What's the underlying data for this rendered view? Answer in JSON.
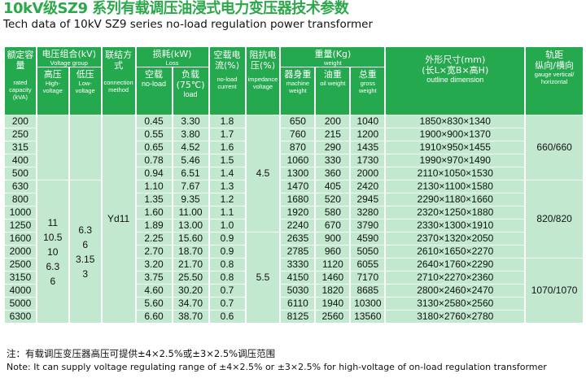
{
  "title_cn": "10kV级SZ9 系列有载调压油浸式电力变压器技术参数",
  "title_en": "Tech data of 10kV SZ9 series no-load regulation power transformer",
  "headers": {
    "capacity_cn": "额定容量",
    "capacity_en": "rated capacity (kVA)",
    "voltage_cn": "电压组合(kV)",
    "voltage_en": "Voltage group",
    "hv_cn": "高压",
    "hv_en": "High-voltage",
    "lv_cn": "低压",
    "lv_en": "Low-voltage",
    "connection_cn": "联结方式",
    "connection_en": "connection method",
    "loss_cn": "损耗(kW)",
    "loss_en": "Loss",
    "noload_cn": "空载",
    "noload_en": "no-load",
    "load_cn": "负载(75℃)",
    "load_en": "load",
    "current_cn": "空载电流(%)",
    "current_en": "no-load current",
    "impedance_cn": "阻抗电压(%)",
    "impedance_en": "impedance voltage",
    "weight_cn": "重量(Kg)",
    "weight_en": "weight",
    "machine_cn": "器身重",
    "machine_en": "machine weight",
    "oil_cn": "油重",
    "oil_en": "oil weight",
    "gross_cn": "总重",
    "gross_en": "gross weight",
    "dim_cn": "外形尺寸(mm)",
    "dim_cn2": "(长L×宽B×高H)",
    "dim_en": "outline dimension",
    "gauge_cn": "轨距",
    "gauge_cn2": "纵向/横向",
    "gauge_en": "gauge vertical/ horizontal"
  },
  "shared": {
    "hv_values": "11\n10.5\n10\n6.3\n6",
    "lv_values": "6.3\n6\n3.15\n3",
    "connection": "Yd11",
    "impedance_1": "4.5",
    "impedance_2": "5.5",
    "gauge_1": "660/660",
    "gauge_2": "820/820",
    "gauge_3": "1070/1070"
  },
  "rows": [
    {
      "cap": "200",
      "nl": "0.45",
      "ld": "3.30",
      "cur": "1.8",
      "mw": "650",
      "ow": "200",
      "gw": "1040",
      "dim": "1850×830×1340"
    },
    {
      "cap": "250",
      "nl": "0.55",
      "ld": "3.80",
      "cur": "1.7",
      "mw": "760",
      "ow": "215",
      "gw": "1200",
      "dim": "1900×900×1370"
    },
    {
      "cap": "315",
      "nl": "0.65",
      "ld": "4.52",
      "cur": "1.6",
      "mw": "870",
      "ow": "290",
      "gw": "1435",
      "dim": "1910×950×1455"
    },
    {
      "cap": "400",
      "nl": "0.78",
      "ld": "5.46",
      "cur": "1.5",
      "mw": "1060",
      "ow": "330",
      "gw": "1730",
      "dim": "1990×970×1490"
    },
    {
      "cap": "500",
      "nl": "0.94",
      "ld": "6.51",
      "cur": "1.4",
      "mw": "1300",
      "ow": "360",
      "gw": "2000",
      "dim": "2110×1050×1530"
    },
    {
      "cap": "630",
      "nl": "1.10",
      "ld": "7.67",
      "cur": "1.3",
      "mw": "1470",
      "ow": "405",
      "gw": "2420",
      "dim": "2130×1100×1580"
    },
    {
      "cap": "800",
      "nl": "1.35",
      "ld": "9.35",
      "cur": "1.2",
      "mw": "1680",
      "ow": "520",
      "gw": "2945",
      "dim": "2290×1180×1660"
    },
    {
      "cap": "1000",
      "nl": "1.60",
      "ld": "11.00",
      "cur": "1.1",
      "mw": "1920",
      "ow": "580",
      "gw": "3280",
      "dim": "2320×1250×1880"
    },
    {
      "cap": "1250",
      "nl": "1.89",
      "ld": "13.00",
      "cur": "1.0",
      "mw": "2240",
      "ow": "670",
      "gw": "3790",
      "dim": "2330×1300×1910"
    },
    {
      "cap": "1600",
      "nl": "2.25",
      "ld": "15.60",
      "cur": "0.9",
      "mw": "2635",
      "ow": "900",
      "gw": "4590",
      "dim": "2370×1320×2050"
    },
    {
      "cap": "2000",
      "nl": "2.70",
      "ld": "18.70",
      "cur": "0.9",
      "mw": "2785",
      "ow": "960",
      "gw": "5050",
      "dim": "2610×1650×2270"
    },
    {
      "cap": "2500",
      "nl": "3.20",
      "ld": "21.70",
      "cur": "0.8",
      "mw": "3330",
      "ow": "1120",
      "gw": "6055",
      "dim": "2640×1760×2290"
    },
    {
      "cap": "3150",
      "nl": "3.75",
      "ld": "25.50",
      "cur": "0.8",
      "mw": "4150",
      "ow": "1460",
      "gw": "7170",
      "dim": "2710×2270×2360"
    },
    {
      "cap": "4000",
      "nl": "4.60",
      "ld": "30.20",
      "cur": "0.7",
      "mw": "5030",
      "ow": "1820",
      "gw": "8685",
      "dim": "2800×2460×2470"
    },
    {
      "cap": "5000",
      "nl": "5.60",
      "ld": "34.70",
      "cur": "0.7",
      "mw": "6110",
      "ow": "1940",
      "gw": "10300",
      "dim": "3130×2580×2560"
    },
    {
      "cap": "6300",
      "nl": "6.60",
      "ld": "38.70",
      "cur": "0.6",
      "mw": "8125",
      "ow": "2560",
      "gw": "13560",
      "dim": "3180×2760×2780"
    }
  ],
  "note_cn": "注：有载调压变压器高压可提供±4×2.5%或±3×2.5%调压范围",
  "note_en": "Note: It can supply voltage regulating range of ±4×2.5% or ±3×2.5% for high-voltage of on-load regulation transformer"
}
